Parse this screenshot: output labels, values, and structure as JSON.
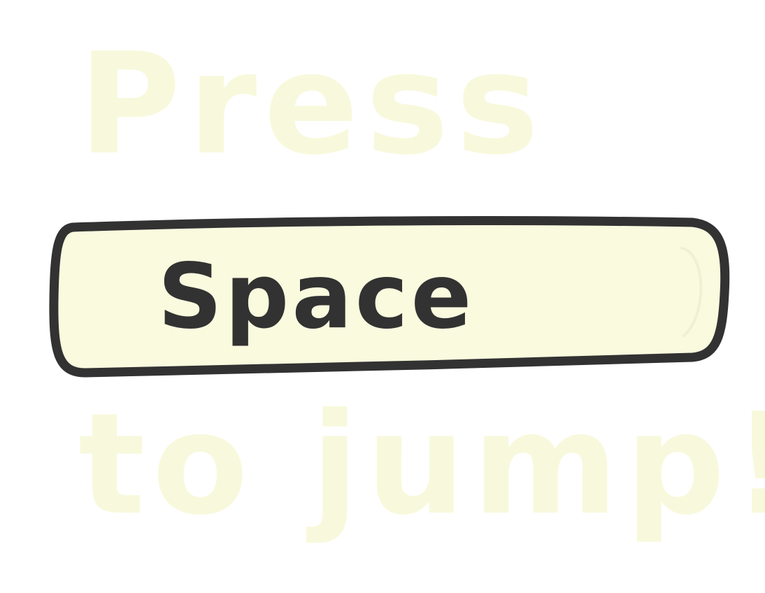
{
  "prompt": {
    "line1": "Press",
    "key_label": "Space",
    "line2": "to jump!"
  },
  "colors": {
    "background": "#ffffff",
    "key_fill": "#fafadf",
    "key_outline": "#323232",
    "key_text": "#323232",
    "hint_text": "#f8f9dc"
  },
  "icons": {
    "key": "spacebar-key-icon"
  }
}
